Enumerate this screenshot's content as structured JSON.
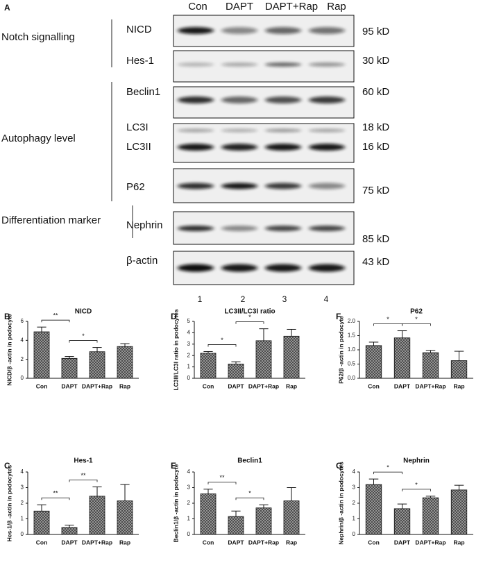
{
  "blot": {
    "panel": "A",
    "lanes": [
      "Con",
      "DAPT",
      "DAPT+Rap",
      "Rap"
    ],
    "lane_numbers": [
      "1",
      "2",
      "3",
      "4"
    ],
    "groups": [
      "Notch signalling",
      "Autophagy level",
      "Differentiation marker"
    ],
    "rows": [
      {
        "label": "NICD",
        "size": "95 kD"
      },
      {
        "label": "Hes-1",
        "size": "30 kD"
      },
      {
        "label": "Beclin1",
        "size": "60 kD"
      },
      {
        "label": "LC3I",
        "size": "18 kD"
      },
      {
        "label": "LC3II",
        "size": "16 kD"
      },
      {
        "label": "P62",
        "size": "75 kD"
      },
      {
        "label": "Nephrin",
        "size": "85 kD"
      },
      {
        "label": "β-actin",
        "size": "43 kD"
      }
    ]
  },
  "chart_data": [
    {
      "type": "bar",
      "panel": "B",
      "title": "NICD",
      "y_label": "NICD/β -actin in podocyte",
      "categories": [
        "Con",
        "DAPT",
        "DAPT+Rap",
        "Rap"
      ],
      "values": [
        4.9,
        2.1,
        2.8,
        3.35
      ],
      "errors": [
        0.5,
        0.2,
        0.45,
        0.3
      ],
      "ylim": [
        0,
        6
      ],
      "yticks": [
        0,
        2,
        4,
        6
      ],
      "annotations": [
        {
          "text": "**",
          "between": [
            0,
            1
          ]
        },
        {
          "text": "*",
          "between": [
            1,
            2
          ]
        }
      ]
    },
    {
      "type": "bar",
      "panel": "D",
      "title": "LC3II/LC3I ratio",
      "y_label": "LC3II/LC3I ratio in podocytes",
      "categories": [
        "Con",
        "DAPT",
        "DAPT+Rap",
        "Rap"
      ],
      "values": [
        2.2,
        1.25,
        3.3,
        3.7
      ],
      "errors": [
        0.15,
        0.2,
        1.05,
        0.6
      ],
      "ylim": [
        0,
        5
      ],
      "yticks": [
        0,
        1,
        2,
        3,
        4,
        5
      ],
      "annotations": [
        {
          "text": "*",
          "between": [
            0,
            1
          ]
        },
        {
          "text": "*",
          "between": [
            1,
            2
          ]
        }
      ]
    },
    {
      "type": "bar",
      "panel": "F",
      "title": "P62",
      "y_label": "P62/β -actin in podocyte",
      "categories": [
        "Con",
        "DAPT",
        "DAPT+Rap",
        "Rap"
      ],
      "values": [
        1.15,
        1.42,
        0.9,
        0.62
      ],
      "errors": [
        0.12,
        0.25,
        0.08,
        0.33
      ],
      "ylim": [
        0,
        2
      ],
      "yticks": [
        {
          "value": 0,
          "label": "0.0"
        },
        {
          "value": 0.5,
          "label": "0.5"
        },
        {
          "value": 1,
          "label": "1.0"
        },
        {
          "value": 1.5,
          "label": "1.5"
        },
        {
          "value": 2,
          "label": "2.0"
        }
      ],
      "annotations": [
        {
          "text": "*",
          "between": [
            0,
            1
          ]
        },
        {
          "text": "*",
          "between": [
            1,
            2
          ]
        }
      ]
    },
    {
      "type": "bar",
      "panel": "C",
      "title": "Hes-1",
      "y_label": "Hes-1/β -actin in podocytes",
      "categories": [
        "Con",
        "DAPT",
        "DAPT+Rap",
        "Rap"
      ],
      "values": [
        1.5,
        0.45,
        2.45,
        2.15
      ],
      "errors": [
        0.4,
        0.15,
        0.6,
        1.05
      ],
      "ylim": [
        0,
        4
      ],
      "yticks": [
        0,
        1,
        2,
        3,
        4
      ],
      "annotations": [
        {
          "text": "**",
          "between": [
            0,
            1
          ]
        },
        {
          "text": "**",
          "between": [
            1,
            2
          ]
        }
      ]
    },
    {
      "type": "bar",
      "panel": "E",
      "title": "Beclin1",
      "y_label": "Beclin1/β -actin in podocyte",
      "categories": [
        "Con",
        "DAPT",
        "DAPT+Rap",
        "Rap"
      ],
      "values": [
        2.6,
        1.15,
        1.7,
        2.15
      ],
      "errors": [
        0.3,
        0.35,
        0.2,
        0.85
      ],
      "ylim": [
        0,
        4
      ],
      "yticks": [
        0,
        1,
        2,
        3,
        4
      ],
      "annotations": [
        {
          "text": "**",
          "between": [
            0,
            1
          ]
        },
        {
          "text": "*",
          "between": [
            1,
            2
          ]
        }
      ]
    },
    {
      "type": "bar",
      "panel": "G",
      "title": "Nephrin",
      "y_label": "Nephrin/β -actin in podocytes",
      "categories": [
        "Con",
        "DAPT",
        "DAPT+Rap",
        "Rap"
      ],
      "values": [
        3.2,
        1.65,
        2.35,
        2.85
      ],
      "errors": [
        0.35,
        0.3,
        0.1,
        0.3
      ],
      "ylim": [
        0,
        4
      ],
      "yticks": [
        0,
        1,
        2,
        3,
        4
      ],
      "annotations": [
        {
          "text": "*",
          "between": [
            0,
            1
          ]
        },
        {
          "text": "*",
          "between": [
            1,
            2
          ]
        }
      ]
    }
  ]
}
